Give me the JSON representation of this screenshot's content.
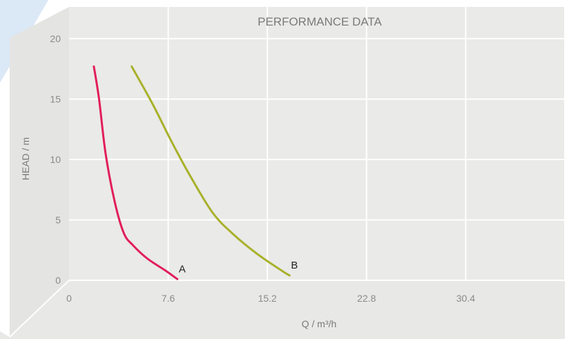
{
  "chart_data": {
    "type": "line",
    "title": "PERFORMANCE DATA",
    "xlabel": "Q / m³/h",
    "ylabel": "HEAD / m",
    "x_ticks": [
      "0",
      "7.6",
      "15.2",
      "22.8",
      "30.4"
    ],
    "y_ticks": [
      "0",
      "5",
      "10",
      "15",
      "20"
    ],
    "xlim": [
      0,
      38
    ],
    "ylim": [
      0,
      20
    ],
    "grid": true,
    "series": [
      {
        "name": "A",
        "color": "#e21d5a",
        "points": [
          [
            1.9,
            17.7
          ],
          [
            2.3,
            15.0
          ],
          [
            2.8,
            10.5
          ],
          [
            3.5,
            6.5
          ],
          [
            4.2,
            3.9
          ],
          [
            4.9,
            2.9
          ],
          [
            6.0,
            1.8
          ],
          [
            7.4,
            0.8
          ],
          [
            8.3,
            0.1
          ]
        ]
      },
      {
        "name": "B",
        "color": "#a8b12a",
        "points": [
          [
            4.8,
            17.7
          ],
          [
            6.4,
            14.6
          ],
          [
            7.8,
            11.6
          ],
          [
            9.2,
            8.8
          ],
          [
            11.0,
            5.6
          ],
          [
            12.6,
            3.8
          ],
          [
            14.4,
            2.2
          ],
          [
            16.3,
            0.8
          ],
          [
            16.9,
            0.4
          ]
        ]
      }
    ]
  }
}
